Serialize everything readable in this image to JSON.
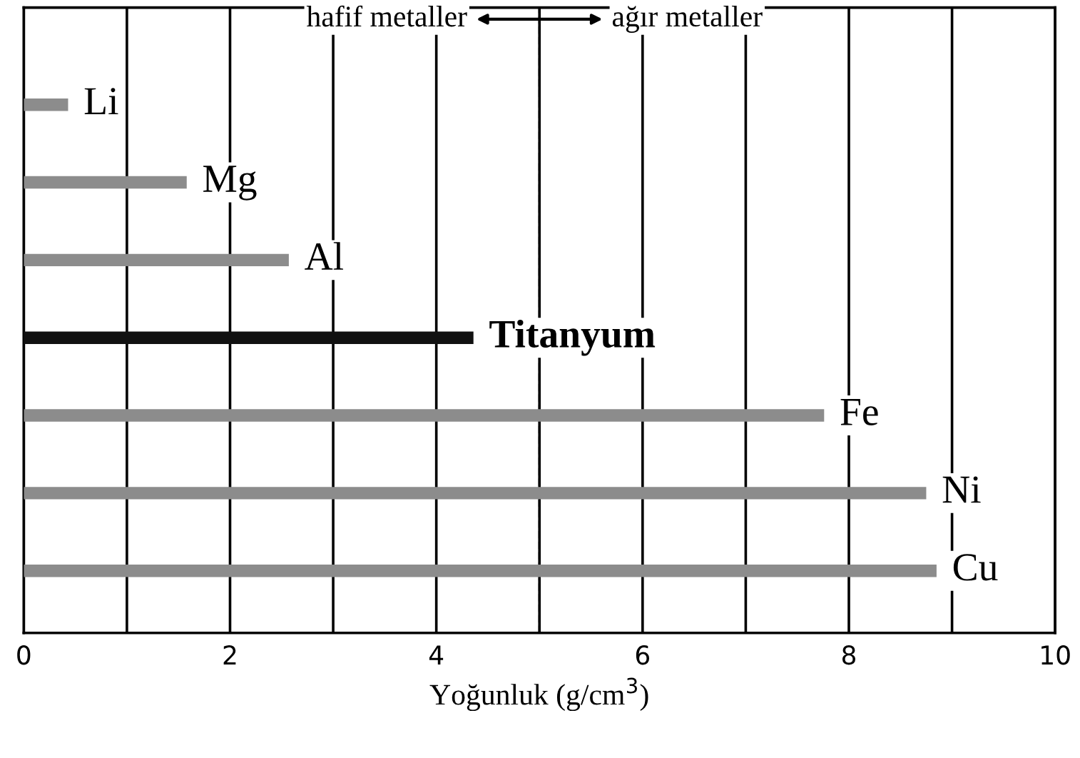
{
  "chart_data": {
    "type": "bar",
    "orientation": "horizontal",
    "xlabel": "Yoğunluk (g/cm$^{3}$)",
    "categories": [
      "Li",
      "Mg",
      "Al",
      "Titanyum",
      "Fe",
      "Ni",
      "Cu"
    ],
    "values": [
      0.43,
      1.58,
      2.57,
      4.36,
      7.76,
      8.75,
      8.85
    ],
    "colors": [
      "#8c8c8c",
      "#8c8c8c",
      "#8c8c8c",
      "#111111",
      "#8c8c8c",
      "#8c8c8c",
      "#8c8c8c"
    ],
    "xlim": [
      0,
      10
    ],
    "xticks": [
      0,
      {
        "value": 1,
        "label": null
      },
      2,
      {
        "value": 3,
        "label": null
      },
      4,
      {
        "value": 5,
        "label": null
      },
      6,
      {
        "value": 7,
        "label": null
      },
      8,
      {
        "value": 9,
        "label": null
      },
      10
    ],
    "grid": "x",
    "ref_lines": [
      {
        "axis": "x",
        "value": 5,
        "line_style": "dashed",
        "color": "#000000"
      }
    ],
    "annotations": [
      "hafif metaller",
      "ağır metaller"
    ]
  }
}
